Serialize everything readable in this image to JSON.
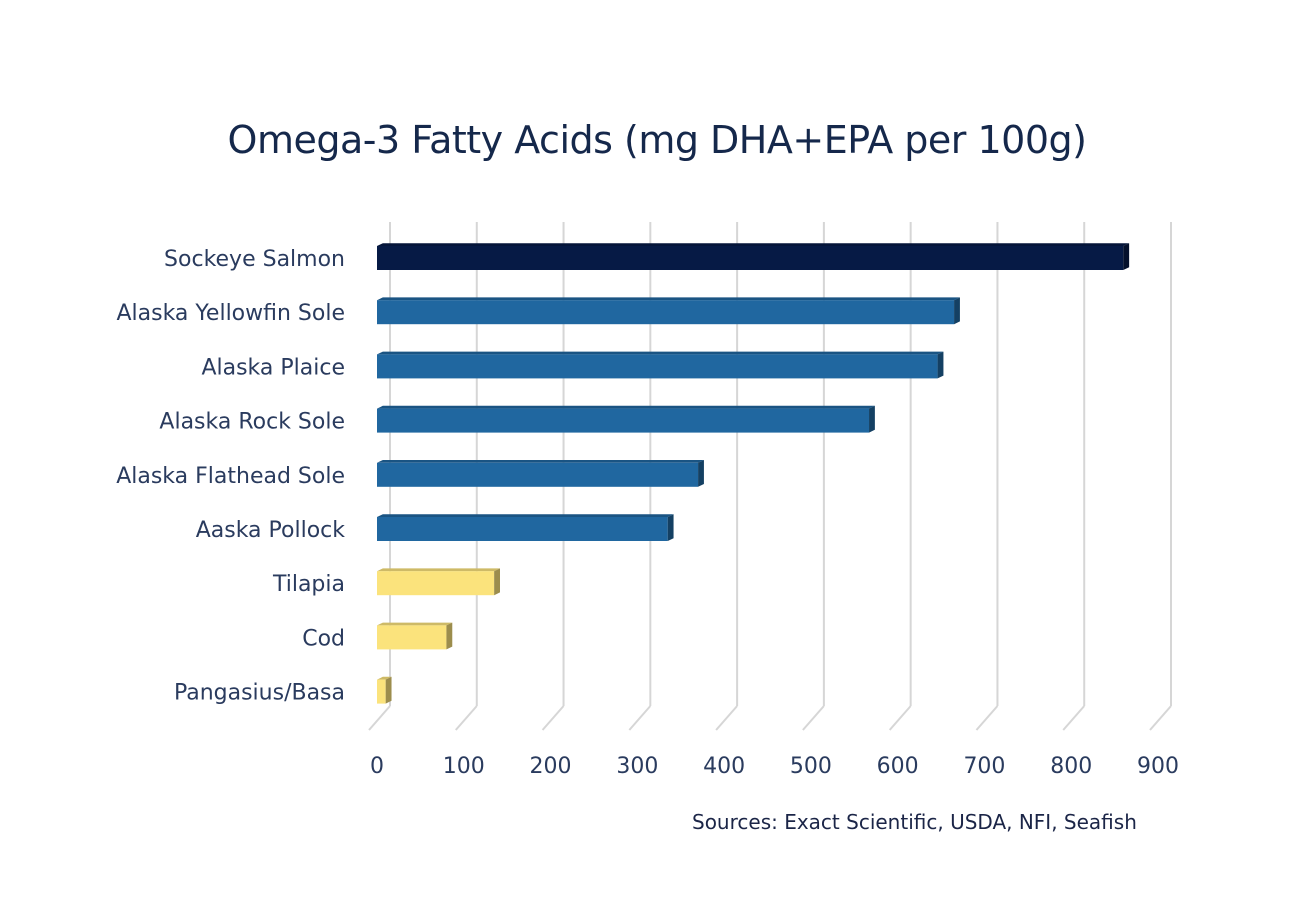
{
  "chart_data": {
    "type": "bar",
    "orientation": "horizontal",
    "title": "Omega-3 Fatty Acids (mg DHA+EPA per 100g)",
    "categories": [
      "Sockeye Salmon",
      "Alaska Yellowfin Sole",
      "Alaska Plaice",
      "Alaska Rock Sole",
      "Alaska Flathead Sole",
      "Aaska Pollock",
      "Tilapia",
      "Cod",
      "Pangasius/Basa"
    ],
    "values": [
      860,
      665,
      646,
      567,
      370,
      335,
      135,
      80,
      10
    ],
    "colors": [
      "#061a45",
      "#2067a0",
      "#2067a0",
      "#2067a0",
      "#2067a0",
      "#2067a0",
      "#fbe37c",
      "#fbe37c",
      "#fbe37c"
    ],
    "xlim": [
      0,
      900
    ],
    "xticks": [
      0,
      100,
      200,
      300,
      400,
      500,
      600,
      700,
      800,
      900
    ],
    "xtick_labels": [
      "0",
      "100",
      "200",
      "300",
      "400",
      "500",
      "600",
      "700",
      "800",
      "900"
    ],
    "grid": "vertical",
    "legend": "none",
    "style": "3d",
    "source": "Sources: Exact Scientific, USDA, NFI, Seafish"
  }
}
